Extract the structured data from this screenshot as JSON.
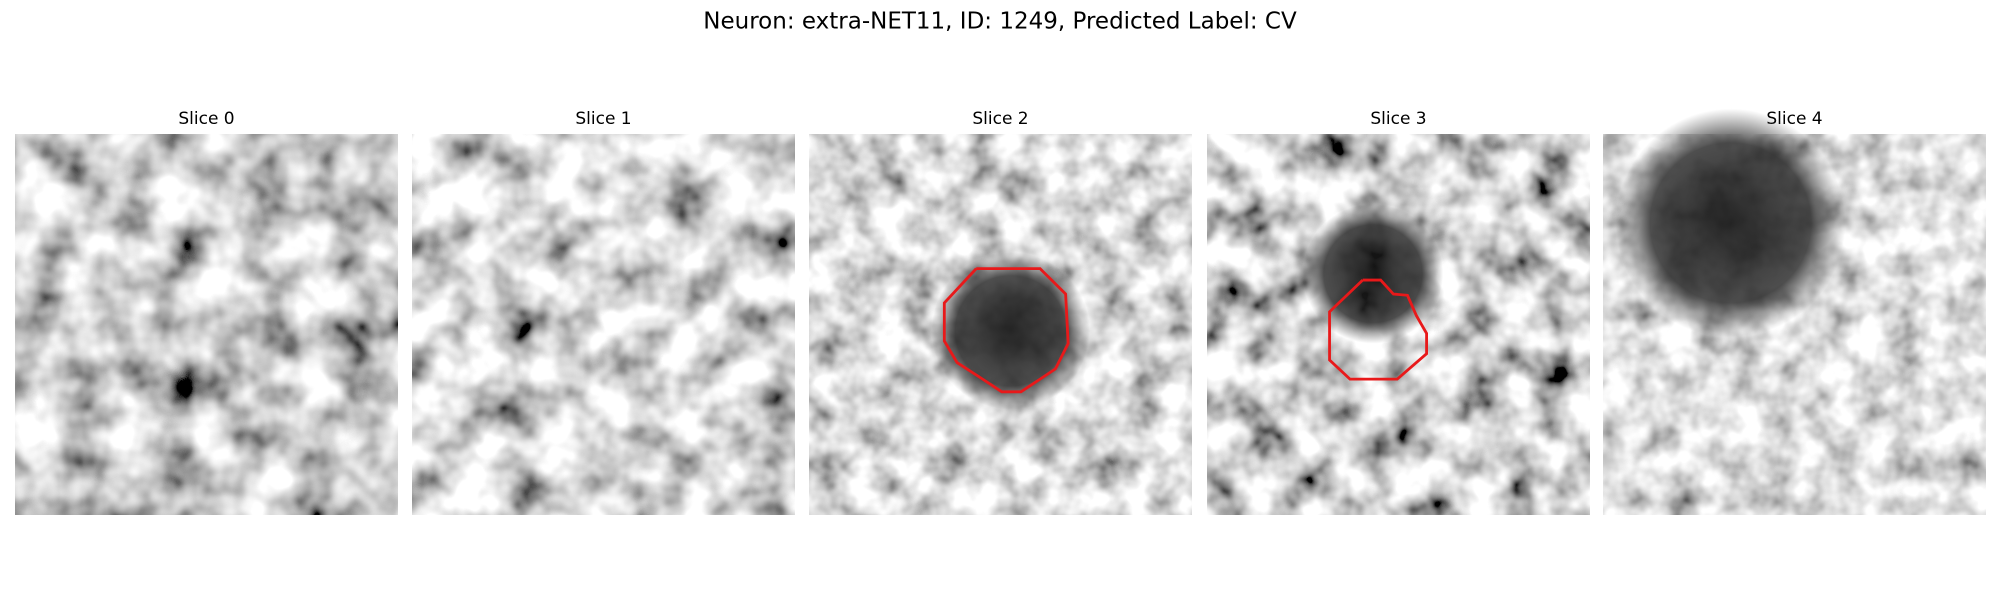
{
  "title": "Neuron: extra-NET11, ID: 1249, Predicted Label: CV",
  "panels": [
    {
      "title": "Slice 0"
    },
    {
      "title": "Slice 1"
    },
    {
      "title": "Slice 2"
    },
    {
      "title": "Slice 3"
    },
    {
      "title": "Slice 4"
    }
  ]
}
